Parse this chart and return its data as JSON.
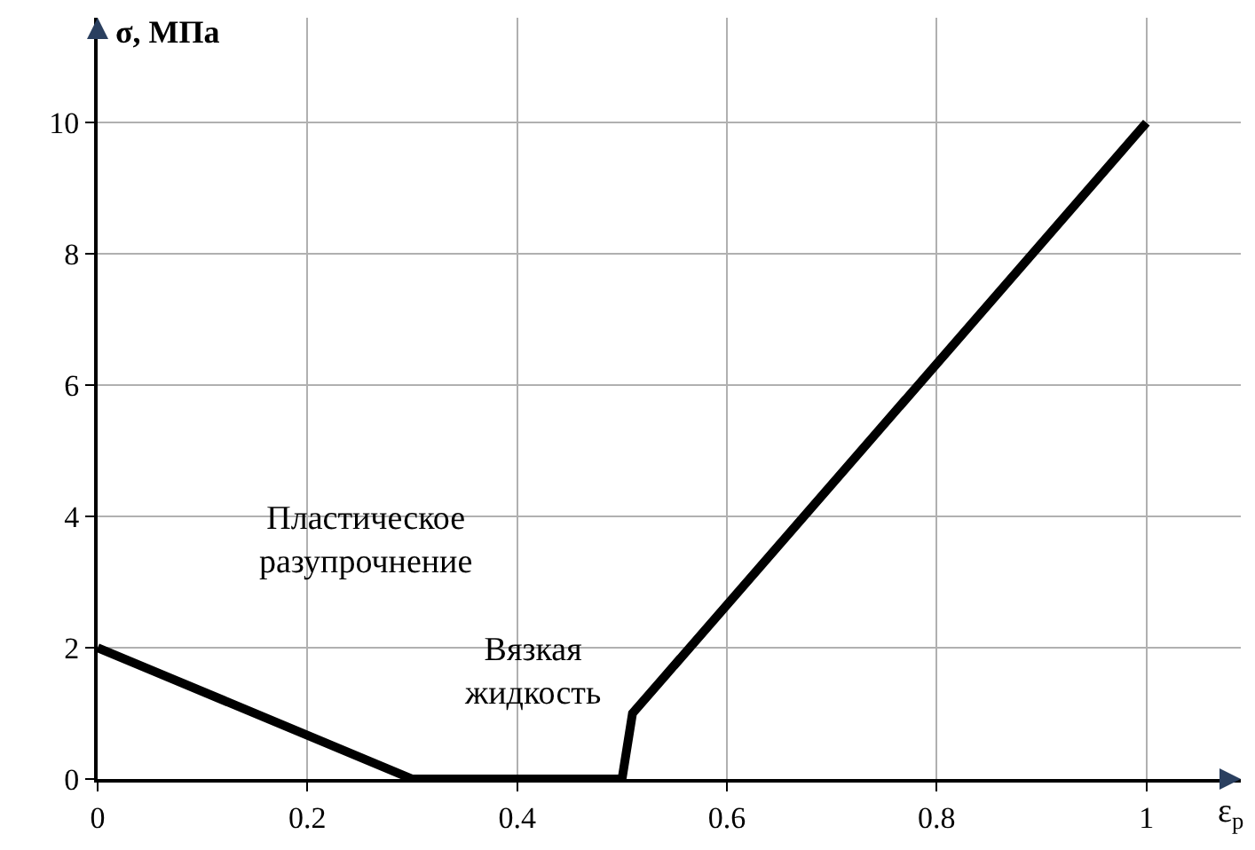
{
  "chart_data": {
    "type": "line",
    "xlabel": "ε$_{p}$",
    "ylabel": "σ, МПа",
    "series": [
      {
        "color": "#000000",
        "x": [
          0,
          0.3,
          0.5,
          0.51,
          1
        ],
        "values": [
          2,
          0,
          0,
          1,
          10
        ]
      }
    ],
    "xlim": [
      0,
      1.09
    ],
    "ylim": [
      0,
      11.6
    ],
    "xticks": [
      0,
      0.2,
      0.4,
      0.6,
      0.8,
      1
    ],
    "yticks": [
      0,
      2,
      4,
      6,
      8,
      10
    ],
    "grid": true,
    "marker": "none",
    "line_style": "solid",
    "annotations": [
      "Пластическое\nразупрочнение",
      "Вязкая\nжидкость"
    ]
  }
}
